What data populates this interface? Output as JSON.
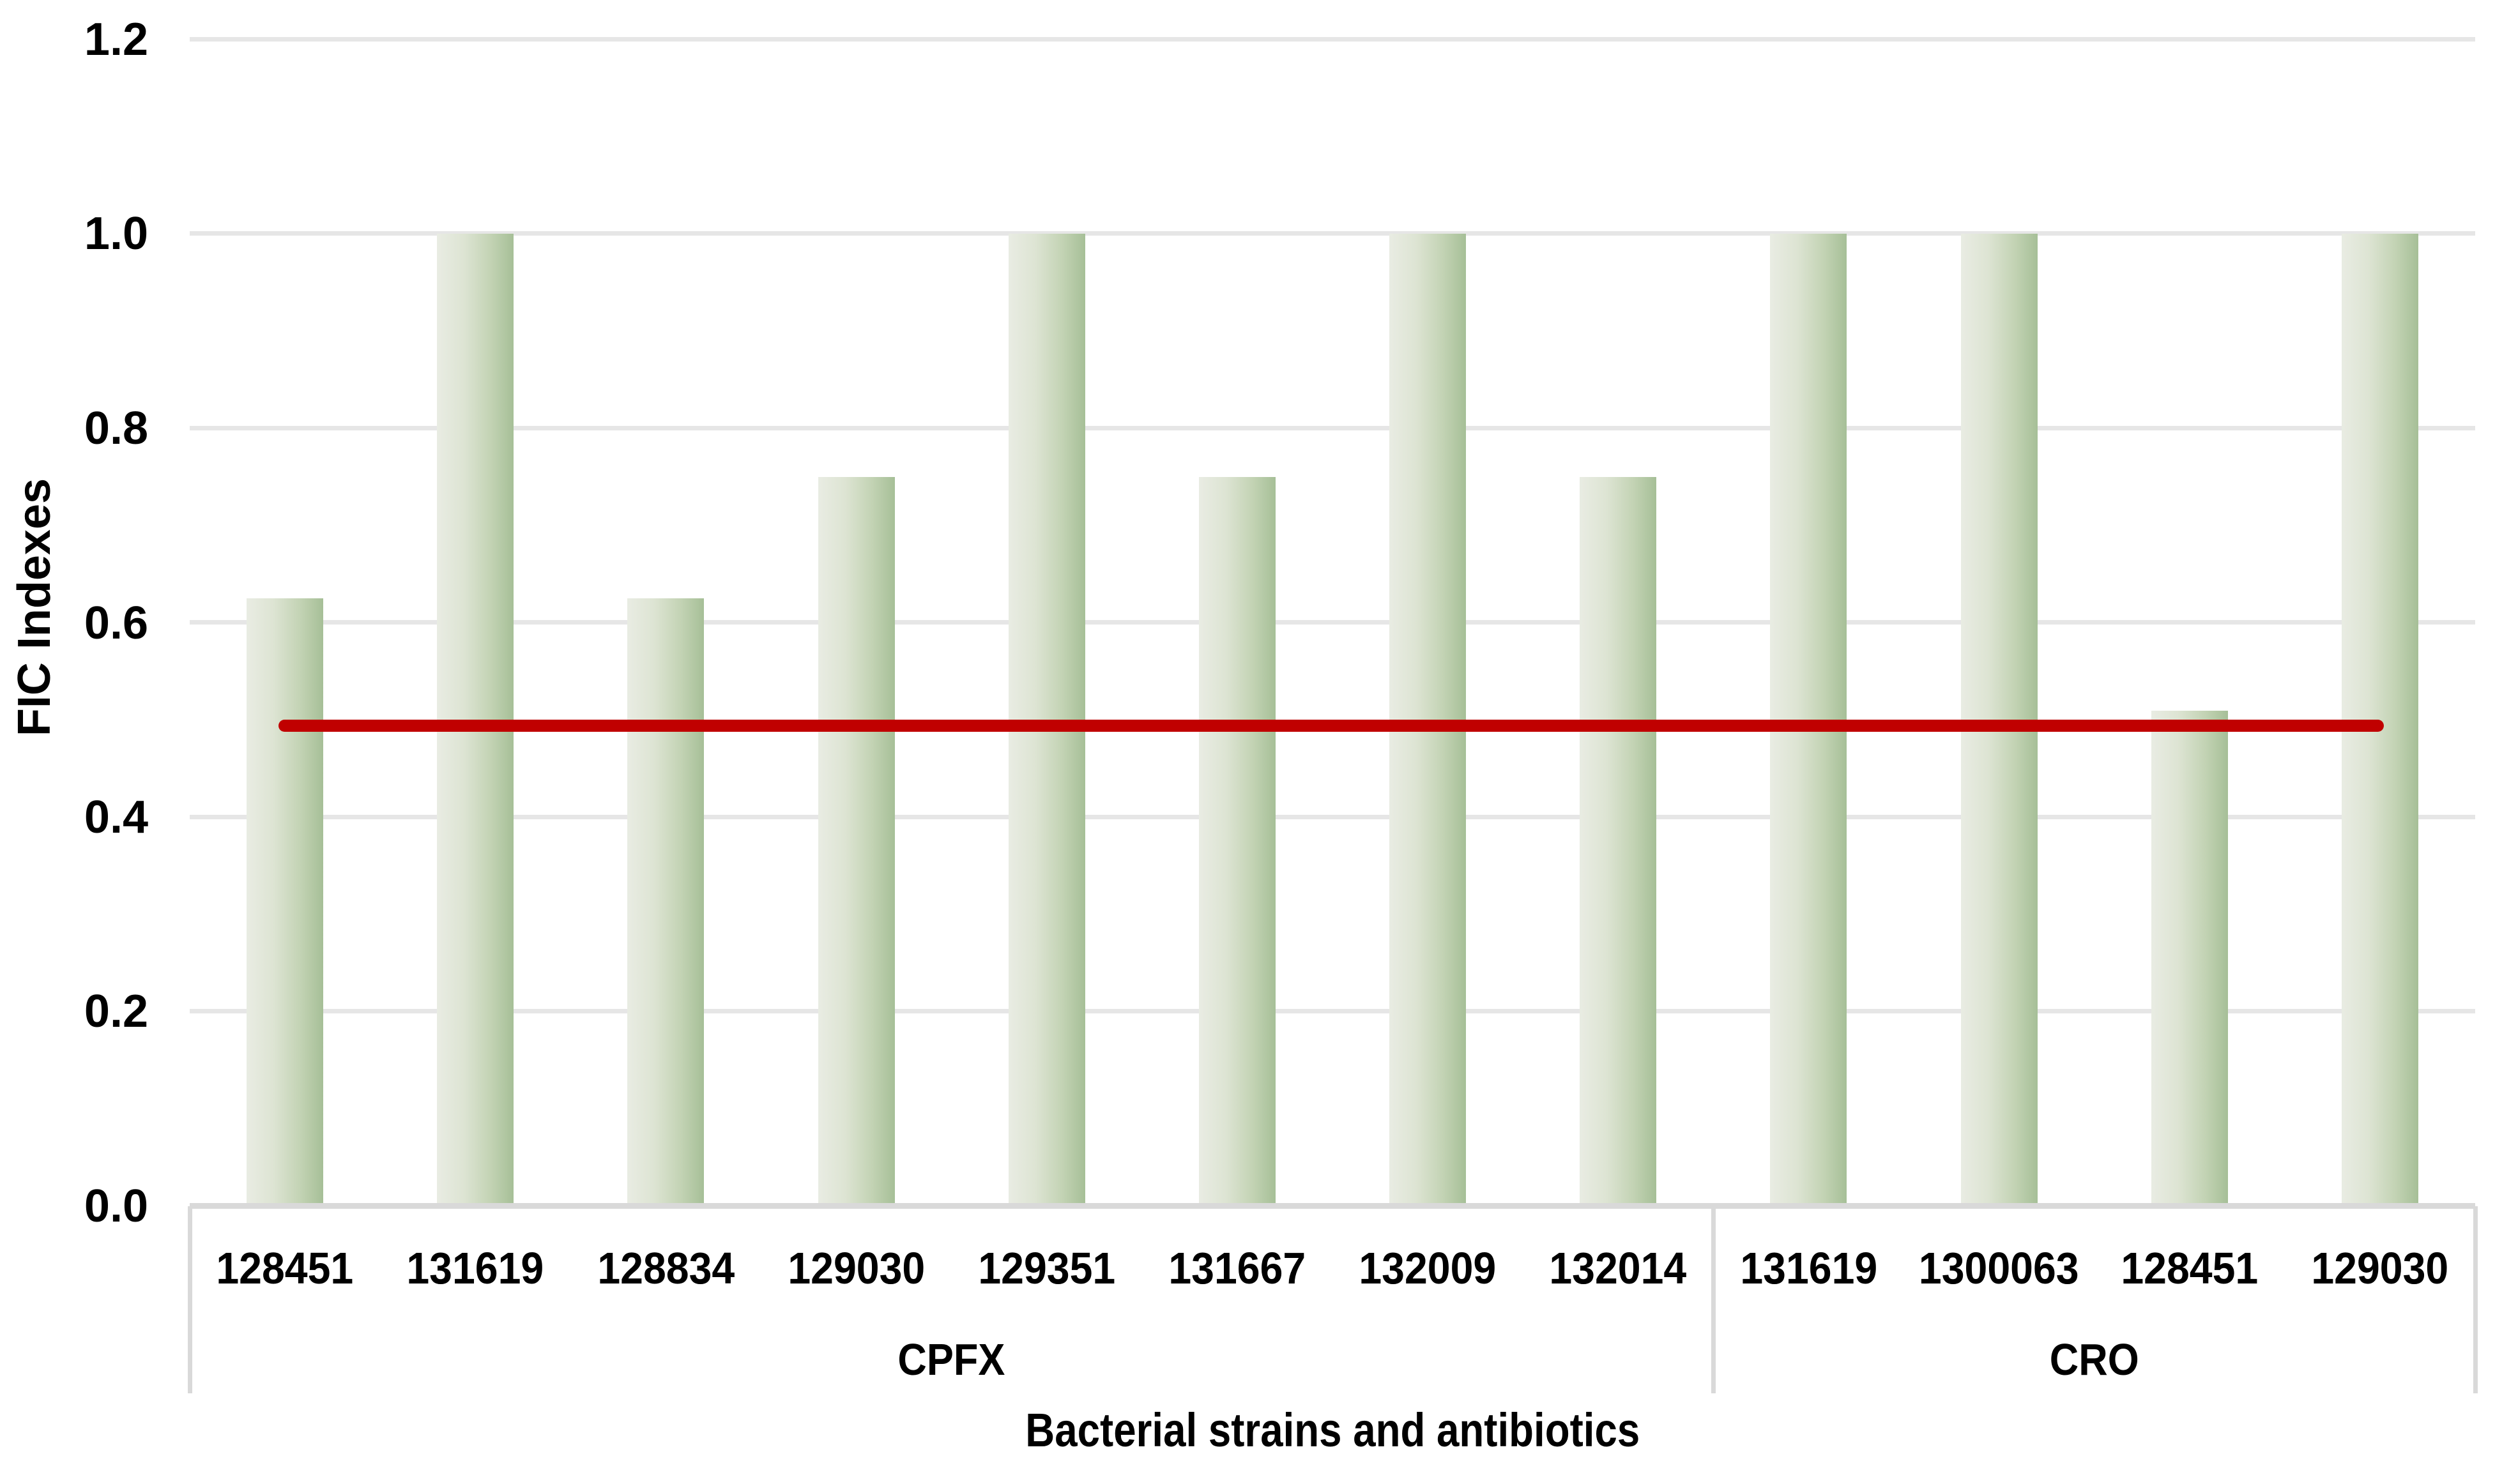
{
  "chart_data": {
    "type": "bar",
    "title": "",
    "xlabel": "Bacterial strains and antibiotics",
    "ylabel": "FIC Indexes",
    "ylim": [
      0,
      1.2
    ],
    "ytick_labels": [
      "1.2",
      "1.0",
      "0.8",
      "0.6",
      "0.4",
      "0.2",
      "0.0"
    ],
    "yticks": [
      1.2,
      1.0,
      0.8,
      0.6,
      0.4,
      0.2,
      0.0
    ],
    "grid": "horizontal gridlines on",
    "legend": "none",
    "bar_fill_gradient": [
      "#e9ece3",
      "#dde4d3",
      "#a6bf97"
    ],
    "threshold_line": {
      "value": 0.5,
      "color": "#c00000",
      "meaning": "synergy cutoff FIC = 0.5"
    },
    "groups": [
      {
        "label": "CPFX",
        "strains": [
          "128451",
          "131619",
          "128834",
          "129030",
          "129351",
          "131667",
          "132009",
          "132014"
        ],
        "values": [
          0.625,
          1.0,
          0.625,
          0.75,
          1.0,
          0.75,
          1.0,
          0.75
        ]
      },
      {
        "label": "CRO",
        "strains": [
          "131619",
          "1300063",
          "128451",
          "129030"
        ],
        "values": [
          1.0,
          1.0,
          0.51,
          1.0
        ]
      }
    ]
  }
}
